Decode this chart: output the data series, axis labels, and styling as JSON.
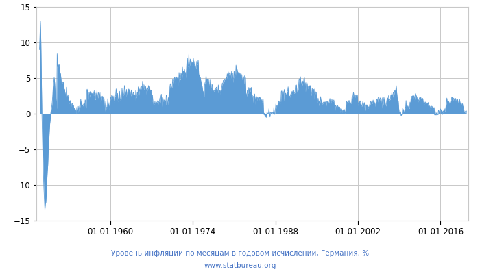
{
  "title_line1": "Уровень инфляции по месяцам в годовом исчислении, Германия, %",
  "title_line2": "www.statbureau.org",
  "title_color": "#4472c4",
  "fill_color": "#5b9bd5",
  "line_color": "#5b9bd5",
  "bg_color": "#ffffff",
  "grid_color": "#c8c8c8",
  "ylim": [
    -15,
    15
  ],
  "yticks": [
    -15,
    -10,
    -5,
    0,
    5,
    10,
    15
  ],
  "xtick_labels": [
    "01.01.1960",
    "01.01.1974",
    "01.01.1988",
    "01.01.2002",
    "01.01.2016"
  ],
  "xtick_years": [
    1960,
    1974,
    1988,
    2002,
    2016
  ]
}
